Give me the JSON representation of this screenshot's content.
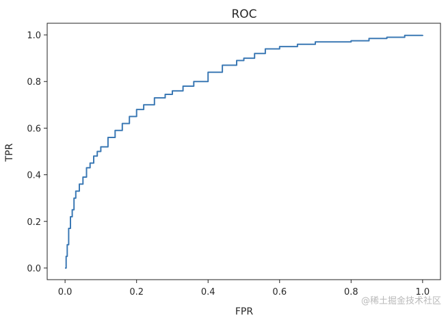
{
  "chart_data": {
    "type": "line",
    "title": "ROC",
    "xlabel": "FPR",
    "ylabel": "TPR",
    "xlim": [
      -0.05,
      1.05
    ],
    "ylim": [
      -0.05,
      1.05
    ],
    "x_ticks": [
      0.0,
      0.2,
      0.4,
      0.6,
      0.8,
      1.0
    ],
    "x_tick_labels": [
      "0.0",
      "0.2",
      "0.4",
      "0.6",
      "0.8",
      "1.0"
    ],
    "y_ticks": [
      0.0,
      0.2,
      0.4,
      0.6,
      0.8,
      1.0
    ],
    "y_tick_labels": [
      "0.0",
      "0.2",
      "0.4",
      "0.6",
      "0.8",
      "1.0"
    ],
    "grid": false,
    "legend": "none",
    "series_color": "#3a78b4",
    "series": [
      {
        "x": [
          0.0,
          0.003,
          0.006,
          0.01,
          0.015,
          0.02,
          0.025,
          0.03,
          0.04,
          0.05,
          0.06,
          0.07,
          0.08,
          0.09,
          0.1,
          0.12,
          0.14,
          0.16,
          0.18,
          0.2,
          0.22,
          0.25,
          0.28,
          0.3,
          0.33,
          0.36,
          0.4,
          0.44,
          0.48,
          0.5,
          0.53,
          0.56,
          0.6,
          0.65,
          0.7,
          0.75,
          0.8,
          0.85,
          0.9,
          0.95,
          1.0
        ],
        "y": [
          0.0,
          0.05,
          0.1,
          0.17,
          0.22,
          0.25,
          0.3,
          0.33,
          0.36,
          0.39,
          0.43,
          0.45,
          0.48,
          0.5,
          0.52,
          0.56,
          0.59,
          0.62,
          0.65,
          0.68,
          0.7,
          0.73,
          0.745,
          0.76,
          0.78,
          0.8,
          0.84,
          0.87,
          0.89,
          0.9,
          0.92,
          0.94,
          0.95,
          0.96,
          0.97,
          0.97,
          0.975,
          0.985,
          0.99,
          0.998,
          1.0
        ]
      }
    ]
  },
  "watermark": "@稀土掘金技术社区"
}
